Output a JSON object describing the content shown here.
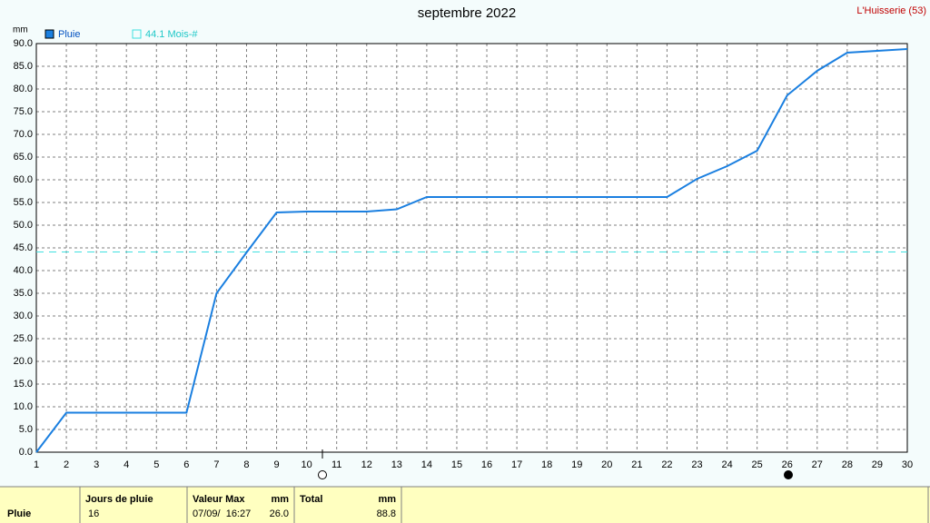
{
  "chart_data": {
    "type": "line",
    "title": "septembre 2022",
    "station": "L'Huisserie (53)",
    "y_unit": "mm",
    "x": [
      1,
      2,
      3,
      4,
      5,
      6,
      7,
      8,
      9,
      10,
      11,
      12,
      13,
      14,
      15,
      16,
      17,
      18,
      19,
      20,
      21,
      22,
      23,
      24,
      25,
      26,
      27,
      28,
      29,
      30
    ],
    "series": [
      {
        "name": "Pluie",
        "color": "#1a7fe0",
        "values": [
          0,
          8.7,
          8.7,
          8.7,
          8.7,
          8.7,
          35,
          44,
          52.8,
          53,
          53,
          53,
          53.5,
          56.2,
          56.2,
          56.2,
          56.2,
          56.2,
          56.2,
          56.2,
          56.2,
          56.2,
          60.2,
          63,
          66.4,
          78.6,
          84,
          88,
          88.4,
          88.8
        ]
      }
    ],
    "reference": {
      "value": 44.1,
      "label": "44.1 Mois-#",
      "color": "#40e0e0"
    },
    "xlim": [
      1,
      30
    ],
    "xticks": [
      1,
      2,
      3,
      4,
      5,
      6,
      7,
      8,
      9,
      10,
      11,
      12,
      13,
      14,
      15,
      16,
      17,
      18,
      19,
      20,
      21,
      22,
      23,
      24,
      25,
      26,
      27,
      28,
      29,
      30
    ],
    "ylim": [
      0,
      90
    ],
    "yticks": [
      {
        "value": 0,
        "label": "0.0"
      },
      {
        "value": 5,
        "label": "5.0"
      },
      {
        "value": 10,
        "label": "10.0"
      },
      {
        "value": 15,
        "label": "15.0"
      },
      {
        "value": 20,
        "label": "20.0"
      },
      {
        "value": 25,
        "label": "25.0"
      },
      {
        "value": 30,
        "label": "30.0"
      },
      {
        "value": 35,
        "label": "35.0"
      },
      {
        "value": 40,
        "label": "40.0"
      },
      {
        "value": 45,
        "label": "45.0"
      },
      {
        "value": 50,
        "label": "50.0"
      },
      {
        "value": 55,
        "label": "55.0"
      },
      {
        "value": 60,
        "label": "60.0"
      },
      {
        "value": 65,
        "label": "65.0"
      },
      {
        "value": 70,
        "label": "70.0"
      },
      {
        "value": 75,
        "label": "75.0"
      },
      {
        "value": 80,
        "label": "80.0"
      },
      {
        "value": 85,
        "label": "85.0"
      },
      {
        "value": 90,
        "label": "90.0"
      }
    ],
    "grid": true
  },
  "table": {
    "row_label": "Pluie",
    "headers": [
      "Jours de pluie",
      "Valeur Max",
      "mm",
      "Total",
      "mm"
    ],
    "cells": [
      "16",
      "07/09/  16:27",
      "26.0",
      "88.8"
    ]
  }
}
